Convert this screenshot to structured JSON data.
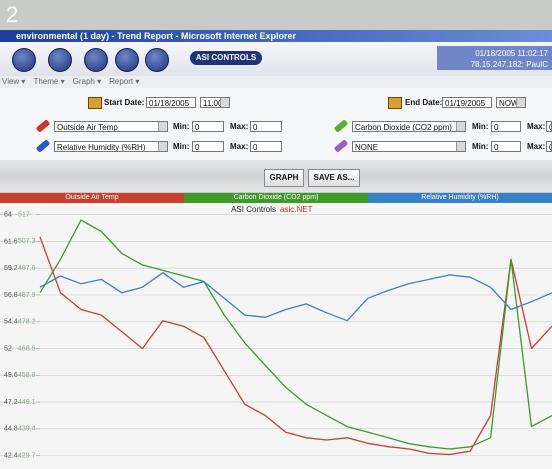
{
  "page_number": "2",
  "window": {
    "title": "environmental (1 day) - Trend Report - Microsoft Internet Explorer"
  },
  "toolbar": {
    "brand": "ASI CONTROLS",
    "datetime": "01/18/2005 11:02:17",
    "user": "78.15.247.182: PaulC"
  },
  "menu": [
    "View",
    "Theme",
    "Graph",
    "Report"
  ],
  "dates": {
    "start_label": "Start Date:",
    "start_date": "01/18/2005",
    "start_time": "11:00",
    "end_label": "End Date:",
    "end_date": "01/19/2005",
    "end_time": "NOW"
  },
  "min_label": "Min:",
  "max_label": "Max:",
  "points": [
    {
      "name": "Outside Air Temp",
      "min": 0,
      "max": 0
    },
    {
      "name": "Relative Humidity (%RH)",
      "min": 0,
      "max": 0
    },
    {
      "name": "Carbon Dioxide (CO2 ppm)",
      "min": 0,
      "max": 0
    },
    {
      "name": "NONE",
      "min": 0,
      "max": 0
    }
  ],
  "buttons": [
    "GRAPH",
    "SAVE AS..."
  ],
  "chart_data": {
    "type": "line",
    "title": "ASI Controls",
    "subtitle": "asic.NET",
    "x": [
      0,
      4,
      8,
      12,
      16,
      20,
      24,
      28,
      32,
      36,
      40,
      44,
      48,
      52,
      56,
      60,
      64,
      68,
      72,
      76,
      80,
      84,
      88,
      92,
      96,
      100
    ],
    "xlim": [
      0,
      100
    ],
    "ylim": [
      41.2,
      64.6
    ],
    "yticks": [
      64,
      61.6,
      59.2,
      56.8,
      54.4,
      52,
      49.6,
      47.2,
      44.8,
      42.4
    ],
    "y2lim": [
      424.85,
      519.4
    ],
    "y2ticks": [
      517,
      507.3,
      497.6,
      487.9,
      478.2,
      468.5,
      458.8,
      449.1,
      439.4,
      429.7
    ],
    "grid": true,
    "series": [
      {
        "name": "Outside Air Temp",
        "color": "#c8402f",
        "values": [
          62,
          57,
          55.5,
          55,
          53.5,
          52,
          54.5,
          54,
          53,
          50,
          47,
          46,
          44.5,
          44,
          43.8,
          44,
          43.5,
          43.2,
          43,
          42.6,
          42.5,
          42.8,
          46,
          60,
          52,
          54
        ]
      },
      {
        "name": "Carbon Dioxide (CO2 ppm)",
        "color": "#3f9a2a",
        "axis": "y2",
        "values": [
          488.7,
          500.8,
          515.0,
          510.9,
          502.9,
          498.8,
          496.8,
          494.8,
          492.8,
          480.6,
          470.5,
          462.4,
          454.4,
          448.3,
          444.2,
          440.2,
          438.2,
          436.2,
          434.1,
          432.9,
          432.1,
          432.9,
          436.2,
          500.8,
          440.2,
          444.2
        ]
      },
      {
        "name": "Relative Humidity (%RH)",
        "color": "#3a80c4",
        "values": [
          57.5,
          58.5,
          57.8,
          58.2,
          57,
          57.5,
          58.8,
          57.5,
          58,
          56.5,
          55,
          54.8,
          55.5,
          56,
          55.2,
          54.5,
          56.5,
          57.2,
          57.8,
          58.2,
          58.6,
          58.4,
          57.5,
          55.5,
          56.2,
          57
        ]
      }
    ]
  }
}
